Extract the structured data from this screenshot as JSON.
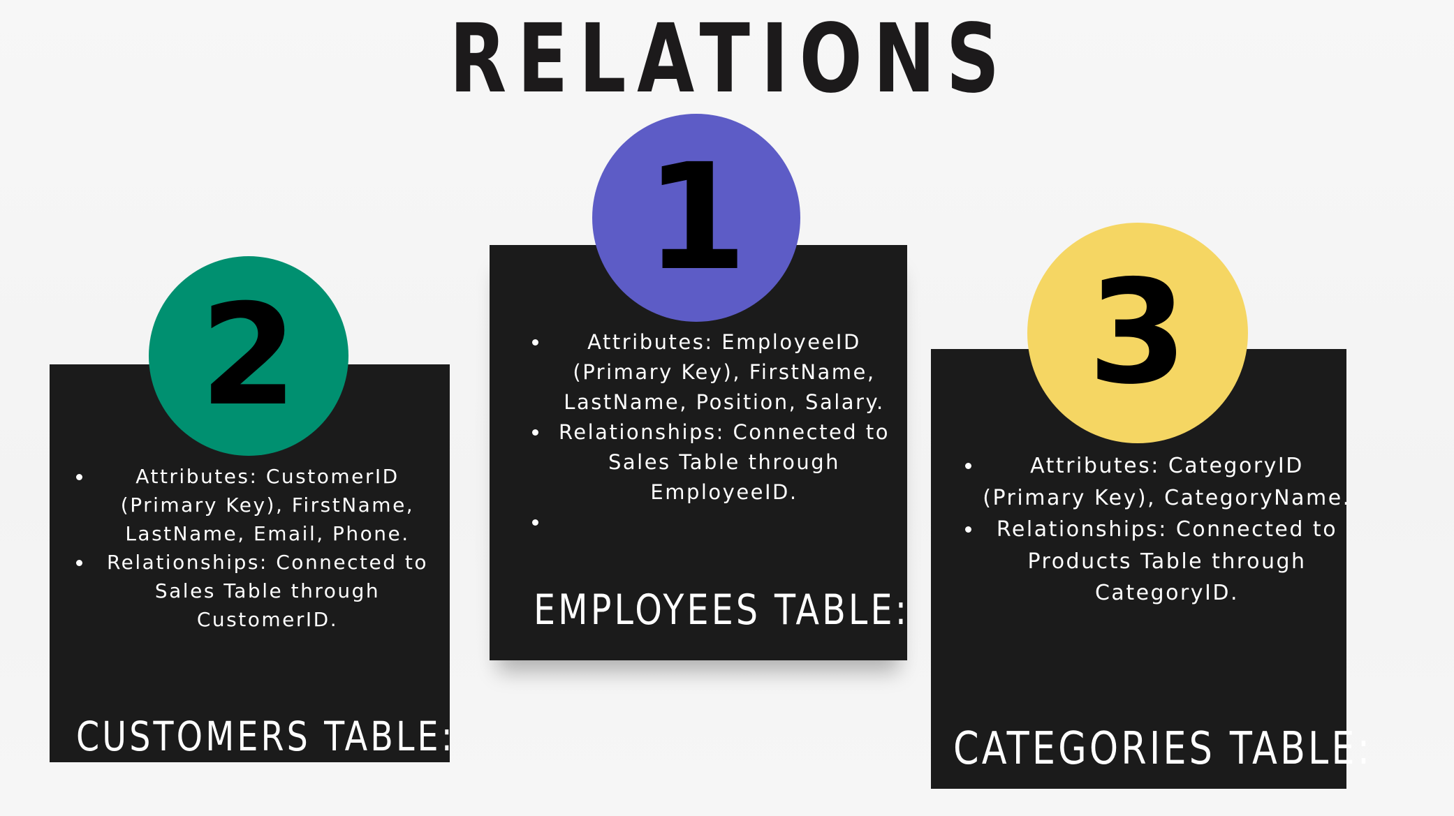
{
  "title": "RELATIONS",
  "colors": {
    "background": "#f5f5f5",
    "card": "#1b1b1b",
    "badge_1": "#5d5cc6",
    "badge_2": "#009070",
    "badge_3": "#f5d663",
    "title_text": "#1c1a1b",
    "card_text": "#ffffff"
  },
  "cards": [
    {
      "number": "1",
      "heading": "EMPLOYEES TABLE:",
      "points": [
        "Attributes: EmployeeID (Primary Key), FirstName, LastName, Position, Salary.",
        "Relationships: Connected to Sales Table through EmployeeID.",
        ""
      ]
    },
    {
      "number": "2",
      "heading": "CUSTOMERS TABLE:",
      "points": [
        "Attributes: CustomerID (Primary Key), FirstName, LastName, Email, Phone.",
        "Relationships: Connected to Sales Table through CustomerID."
      ]
    },
    {
      "number": "3",
      "heading": "CATEGORIES TABLE:",
      "points": [
        "Attributes: CategoryID (Primary Key), CategoryName.",
        "Relationships: Connected to Products Table through CategoryID."
      ]
    }
  ]
}
